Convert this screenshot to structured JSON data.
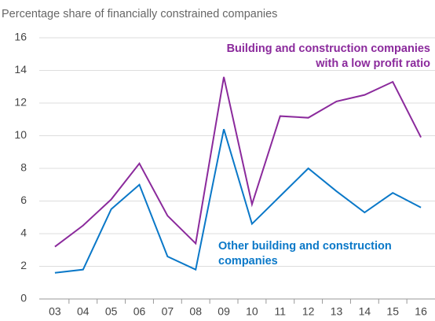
{
  "chart_data": {
    "type": "line",
    "title": "Percentage share of financially constrained companies",
    "categories": [
      "03",
      "04",
      "05",
      "06",
      "07",
      "08",
      "09",
      "10",
      "11",
      "12",
      "13",
      "14",
      "15",
      "16"
    ],
    "series": [
      {
        "name": "Building and construction companies with a low profit ratio",
        "label_lines": [
          "Building and construction companies",
          "with a low profit ratio"
        ],
        "color": "#8b2a9c",
        "values": [
          3.2,
          4.5,
          6.1,
          8.3,
          5.1,
          3.4,
          13.6,
          5.8,
          11.2,
          11.1,
          12.1,
          12.5,
          13.3,
          9.9
        ]
      },
      {
        "name": "Other building and construction companies",
        "label_lines": [
          "Other building and construction",
          "companies"
        ],
        "color": "#0a78c8",
        "values": [
          1.6,
          1.8,
          5.5,
          7.0,
          2.6,
          1.8,
          10.4,
          4.6,
          6.3,
          8.0,
          6.6,
          5.3,
          6.5,
          5.6
        ]
      }
    ],
    "ylim": [
      0,
      16
    ],
    "yticks": [
      0,
      2,
      4,
      6,
      8,
      10,
      12,
      14,
      16
    ],
    "grid": true
  }
}
